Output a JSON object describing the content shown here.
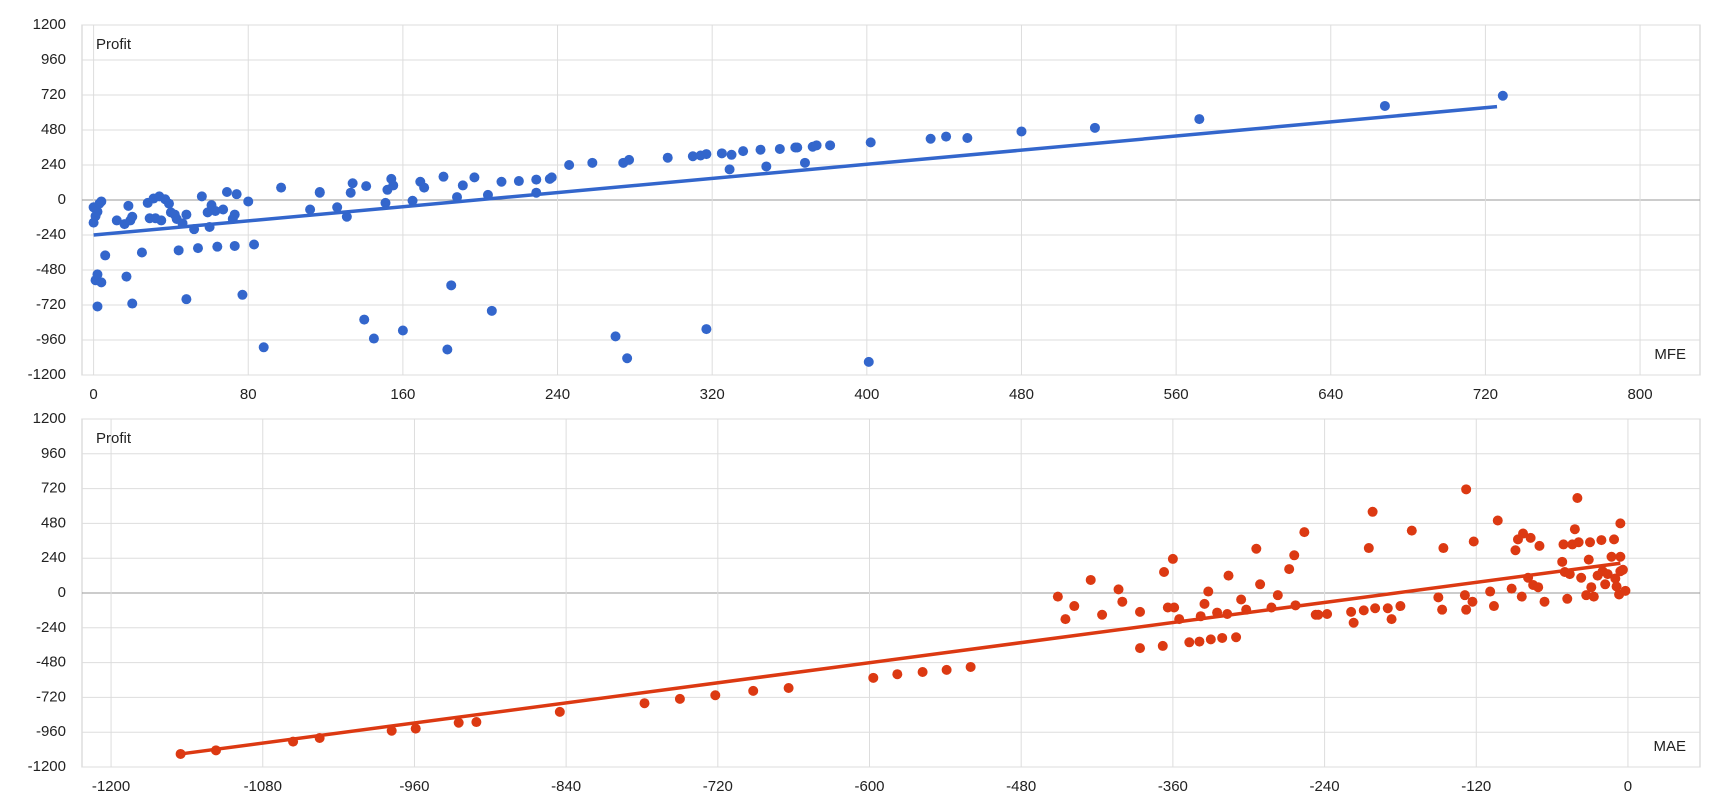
{
  "chart_data": [
    {
      "type": "scatter",
      "y_label": "Profit",
      "x_label": "MFE",
      "color": "#3366cc",
      "grid": true,
      "xlim": [
        -6,
        831
      ],
      "ylim": [
        -1200,
        1200
      ],
      "xticks": [
        0,
        80,
        160,
        240,
        320,
        400,
        480,
        560,
        640,
        720,
        800
      ],
      "yticks": [
        -1200,
        -960,
        -720,
        -480,
        -240,
        0,
        240,
        480,
        720,
        960,
        1200
      ],
      "x": [
        0,
        0,
        1,
        2,
        3,
        4,
        6,
        1,
        2,
        4,
        2,
        12,
        16,
        18,
        17,
        19,
        20,
        20,
        25,
        28,
        29,
        31,
        34,
        32,
        35,
        37,
        39,
        40,
        42,
        43,
        44,
        46,
        48,
        48,
        52,
        54,
        56,
        59,
        60,
        61,
        63,
        64,
        67,
        69,
        72,
        73,
        73,
        74,
        77,
        80,
        83,
        88,
        97,
        112,
        117,
        117,
        126,
        131,
        133,
        134,
        140,
        141,
        145,
        151,
        152,
        154,
        155,
        160,
        165,
        169,
        171,
        181,
        183,
        185,
        188,
        191,
        197,
        204,
        206,
        211,
        220,
        229,
        229,
        236,
        237,
        246,
        258,
        270,
        274,
        277,
        276,
        297,
        310,
        314,
        317,
        317,
        325,
        329,
        330,
        336,
        345,
        348,
        355,
        363,
        364,
        368,
        372,
        374,
        381,
        402,
        401,
        433,
        441,
        452,
        480,
        518,
        572,
        668,
        729
      ],
      "values": [
        -50,
        -155,
        -110,
        -80,
        -25,
        -10,
        -380,
        -550,
        -510,
        -565,
        -730,
        -140,
        -165,
        -40,
        -525,
        -140,
        -115,
        -710,
        -360,
        -20,
        -125,
        10,
        25,
        -125,
        -140,
        5,
        -25,
        -85,
        -100,
        -130,
        -345,
        -160,
        -100,
        -680,
        -200,
        -330,
        25,
        -85,
        -185,
        -35,
        -75,
        -320,
        -65,
        55,
        -130,
        -100,
        -315,
        40,
        -650,
        -10,
        -305,
        -1010,
        85,
        -65,
        55,
        50,
        -50,
        -115,
        50,
        115,
        -820,
        95,
        -950,
        -20,
        70,
        145,
        100,
        -895,
        -5,
        125,
        85,
        160,
        -1025,
        -585,
        20,
        100,
        155,
        35,
        -760,
        125,
        130,
        50,
        140,
        145,
        155,
        240,
        255,
        -935,
        255,
        275,
        -1085,
        290,
        300,
        305,
        315,
        -885,
        320,
        210,
        310,
        335,
        345,
        230,
        350,
        360,
        360,
        255,
        365,
        375,
        375,
        395,
        -1110,
        420,
        435,
        425,
        470,
        495,
        555,
        645,
        715
      ],
      "trendline": {
        "x": [
          0,
          726
        ],
        "values": [
          -240,
          640
        ]
      }
    },
    {
      "type": "scatter",
      "y_label": "Profit",
      "x_label": "MAE",
      "color": "#dc3912",
      "grid": true,
      "xlim": [
        -1223,
        57
      ],
      "ylim": [
        -1200,
        1200
      ],
      "xticks": [
        -1200,
        -1080,
        -960,
        -840,
        -720,
        -600,
        -480,
        -360,
        -240,
        -120,
        0
      ],
      "yticks": [
        -1200,
        -960,
        -720,
        -480,
        -240,
        0,
        240,
        480,
        720,
        960,
        1200
      ],
      "x": [
        -1145,
        -1117,
        -1056,
        -1035,
        -978,
        -959,
        -925,
        -911,
        -845,
        -778,
        -750,
        -722,
        -692,
        -664,
        -597,
        -578,
        -558,
        -539,
        -520,
        -451,
        -445,
        -438,
        -425,
        -416,
        -403,
        -400,
        -386,
        -386,
        -367,
        -368,
        -364,
        -360,
        -359,
        -355,
        -347,
        -339,
        -338,
        -335,
        -332,
        -330,
        -325,
        -321,
        -317,
        -316,
        -310,
        -306,
        -302,
        -294,
        -291,
        -282,
        -277,
        -268,
        -264,
        -263,
        -256,
        -247,
        -245,
        -238,
        -219,
        -217,
        -209,
        -205,
        -202,
        -200,
        -190,
        -187,
        -180,
        -171,
        -150,
        -147,
        -146,
        -129,
        -128,
        -128,
        -123,
        -122,
        -109,
        -106,
        -103,
        -92,
        -89,
        -87,
        -84,
        -83,
        -79,
        -77,
        -75,
        -71,
        -70,
        -66,
        -52,
        -51,
        -50,
        -48,
        -46,
        -44,
        -42,
        -40,
        -39,
        -37,
        -33,
        -31,
        -30,
        -29,
        -27,
        -24,
        -21,
        -20,
        -18,
        -16,
        -13,
        -11,
        -10,
        -9,
        -7,
        -6,
        -6,
        -4,
        -6,
        -2
      ],
      "values": [
        -1110,
        -1085,
        -1025,
        -1000,
        -950,
        -935,
        -895,
        -890,
        -820,
        -760,
        -730,
        -705,
        -675,
        -655,
        -585,
        -560,
        -545,
        -530,
        -510,
        -25,
        -180,
        -90,
        90,
        -150,
        25,
        -60,
        -130,
        -380,
        145,
        -365,
        -100,
        235,
        -100,
        -180,
        -340,
        -335,
        -160,
        -75,
        10,
        -320,
        -135,
        -310,
        -145,
        120,
        -305,
        -45,
        -115,
        305,
        60,
        -100,
        -15,
        165,
        260,
        -85,
        420,
        -150,
        -150,
        -145,
        -130,
        -205,
        -120,
        310,
        560,
        -105,
        -105,
        -180,
        -90,
        430,
        -30,
        -115,
        310,
        -15,
        715,
        -115,
        -60,
        355,
        10,
        -90,
        500,
        30,
        295,
        370,
        -25,
        410,
        105,
        380,
        55,
        40,
        325,
        -60,
        215,
        335,
        145,
        -40,
        130,
        335,
        440,
        655,
        350,
        105,
        -15,
        230,
        350,
        40,
        -25,
        120,
        365,
        150,
        60,
        130,
        250,
        370,
        100,
        45,
        -10,
        250,
        150,
        160,
        480,
        15
      ],
      "trendline": {
        "x": [
          -1145,
          -6
        ],
        "values": [
          -1110,
          205
        ]
      }
    }
  ]
}
